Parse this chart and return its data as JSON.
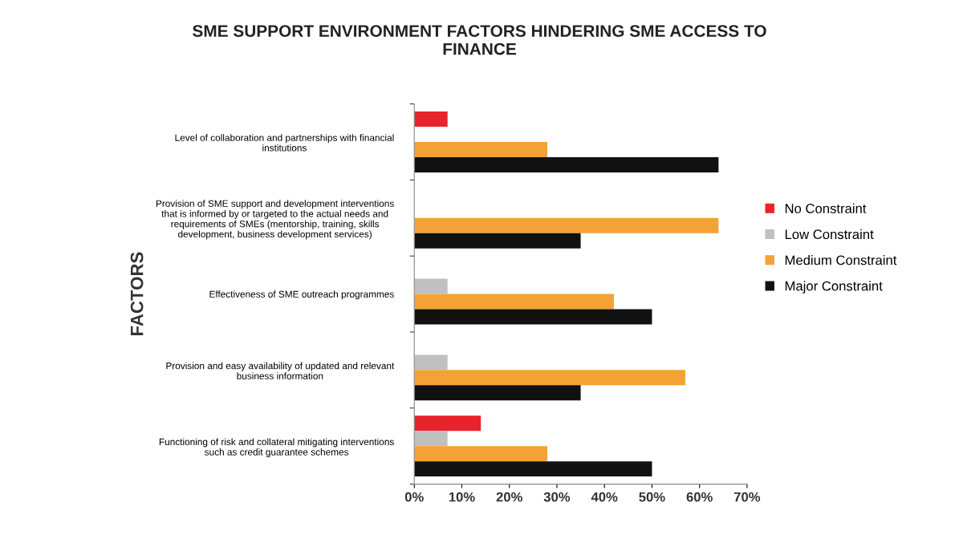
{
  "chart_data": {
    "type": "bar",
    "orientation": "horizontal",
    "title": "SME SUPPORT ENVIRONMENT FACTORS HINDERING SME ACCESS TO\nFINANCE",
    "ylabel": "FACTORS",
    "categories": [
      "Level of collaboration and partnerships with financial\ninstitutions",
      "Provision of SME support and development interventions\nthat is informed by or targeted to the actual needs and\nrequirements of SMEs (mentorship, training, skills\ndevelopment, business development services)",
      "Effectiveness of SME outreach programmes",
      "Provision and easy availability of updated and relevant\nbusiness information",
      "Functioning of risk and collateral mitigating interventions\nsuch as credit guarantee schemes"
    ],
    "series": [
      {
        "name": "No Constraint",
        "color": "#e8232a",
        "values": [
          7,
          null,
          null,
          null,
          14
        ]
      },
      {
        "name": "Low Constraint",
        "color": "#c0c0c0",
        "values": [
          null,
          null,
          7,
          7,
          7
        ]
      },
      {
        "name": "Medium Constraint",
        "color": "#f4a236",
        "values": [
          28,
          64,
          42,
          57,
          28
        ]
      },
      {
        "name": "Major Constraint",
        "color": "#111111",
        "values": [
          64,
          35,
          50,
          35,
          50
        ]
      }
    ],
    "xlim": [
      0,
      70
    ],
    "xticks": [
      {
        "value": 0,
        "label": "0%"
      },
      {
        "value": 10,
        "label": "10%"
      },
      {
        "value": 20,
        "label": "20%"
      },
      {
        "value": 30,
        "label": "30%"
      },
      {
        "value": 40,
        "label": "40%"
      },
      {
        "value": 50,
        "label": "50%"
      },
      {
        "value": 60,
        "label": "60%"
      },
      {
        "value": 70,
        "label": "70%"
      }
    ],
    "grid": false,
    "legend": "right"
  }
}
